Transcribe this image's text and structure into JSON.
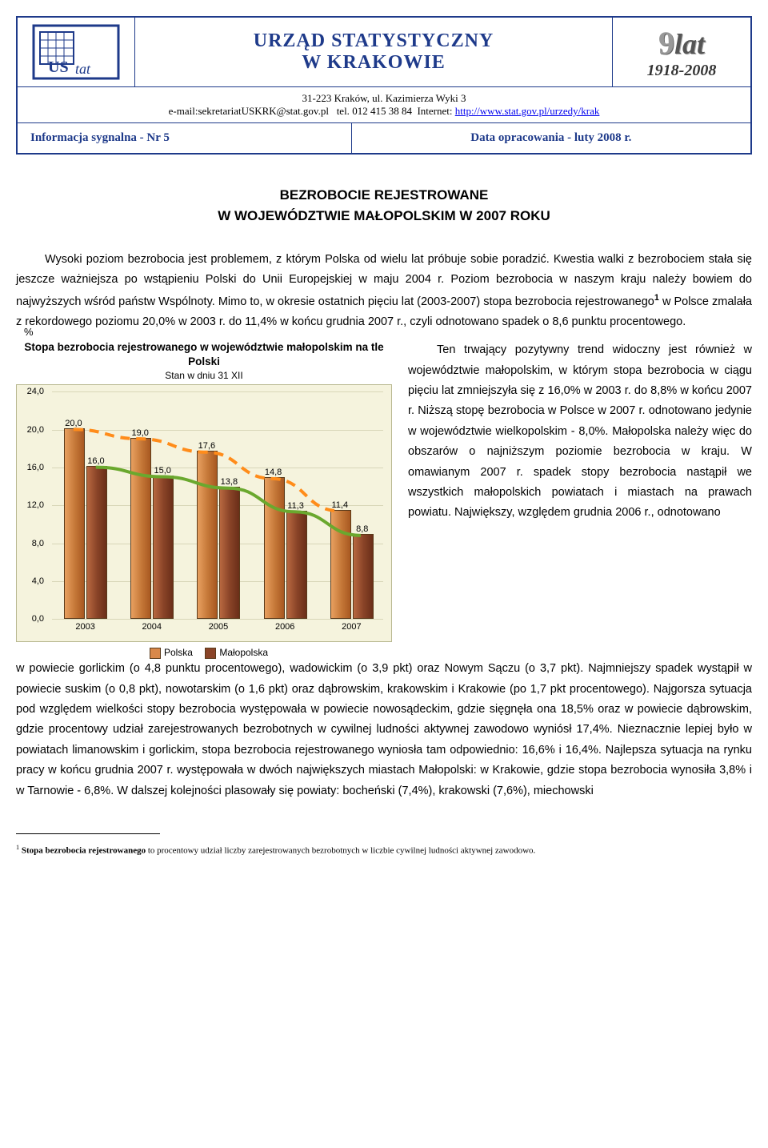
{
  "header": {
    "title_line1": "URZĄD STATYSTYCZNY",
    "title_line2": "W KRAKOWIE",
    "years_logo": "lat",
    "years_span": "1918-2008",
    "addr_line1": "31-223 Kraków,  ul. Kazimierza Wyki 3",
    "addr_email_label": "e-mail:",
    "addr_email": "sekretariatUSKRK@stat.gov.pl",
    "addr_tel_label": "tel.",
    "addr_tel": "012 415 38 84",
    "addr_net_label": "Internet:",
    "addr_url": "http://www.stat.gov.pl/urzedy/krak",
    "info_left": "Informacja sygnalna - Nr 5",
    "info_right": "Data opracowania - luty 2008 r."
  },
  "doc": {
    "title_line1": "BEZROBOCIE REJESTROWANE",
    "title_line2": "W WOJEWÓDZTWIE MAŁOPOLSKIM W 2007 ROKU",
    "para1": "Wysoki poziom bezrobocia jest problemem, z którym Polska od wielu lat próbuje sobie poradzić. Kwestia walki z bezrobociem stała się jeszcze ważniejsza po wstąpieniu Polski do Unii Europejskiej w maju 2004 r. Poziom bezrobocia w naszym kraju należy bowiem do najwyższych wśród państw Wspólnoty. Mimo to, w okresie ostatnich pięciu lat (2003-2007) stopa bezrobocia rejestrowanego",
    "para1_sup": "1",
    "para1_cont": " w Polsce zmalała z rekordowego poziomu 20,0% w 2003 r. do 11,4% w końcu grudnia 2007 r., czyli odnotowano spadek o 8,6 punktu procentowego.",
    "right_para": "Ten trwający pozytywny trend widoczny jest również w województwie małopolskim, w którym stopa bezrobocia w ciągu pięciu lat zmniejszyła się z 16,0% w 2003 r. do 8,8% w końcu 2007 r. Niższą stopę bezrobocia w Polsce w 2007 r. odnotowano jedynie w województwie wielkopolskim - 8,0%. Małopolska należy więc do obszarów o najniższym poziomie bezrobocia w kraju. W omawianym 2007 r. spadek stopy bezrobocia nastąpił we wszystkich małopolskich powiatach i miastach na prawach powiatu. Największy, względem grudnia 2006 r., odnotowano",
    "para_after": "w powiecie gorlickim (o 4,8 punktu procentowego), wadowickim (o 3,9 pkt) oraz Nowym Sączu (o 3,7 pkt). Najmniejszy spadek wystąpił w powiecie suskim (o 0,8 pkt), nowotarskim (o 1,6 pkt) oraz dąbrowskim, krakowskim i Krakowie (po 1,7 pkt procentowego). Najgorsza sytuacja pod względem wielkości stopy bezrobocia występowała w powiecie nowosądeckim, gdzie sięgnęła ona 18,5% oraz w powiecie dąbrowskim, gdzie procentowy udział zarejestrowanych bezrobotnych w cywilnej ludności aktywnej zawodowo wyniósł 17,4%. Nieznacznie lepiej było w powiatach limanowskim i gorlickim, stopa bezrobocia rejestrowanego wyniosła tam odpowiednio: 16,6% i 16,4%. Najlepsza sytuacja na rynku pracy w końcu grudnia 2007 r. występowała w dwóch największych miastach Małopolski: w Krakowie, gdzie stopa bezrobocia wynosiła 3,8% i w Tarnowie - 6,8%. W dalszej kolejności plasowały się powiaty: bocheński (7,4%), krakowski (7,6%), miechowski"
  },
  "chart": {
    "title": "Stopa bezrobocia rejestrowanego w województwie małopolskim na tle Polski",
    "subtitle": "Stan w dniu 31 XII",
    "pct_symbol": "%",
    "y_max": 24.0,
    "y_ticks": [
      "24,0",
      "20,0",
      "16,0",
      "12,0",
      "8,0",
      "4,0",
      "0,0"
    ],
    "y_tick_vals": [
      24.0,
      20.0,
      16.0,
      12.0,
      8.0,
      4.0,
      0.0
    ],
    "categories": [
      "2003",
      "2004",
      "2005",
      "2006",
      "2007"
    ],
    "series": {
      "polska": {
        "label": "Polska",
        "values": [
          20.0,
          19.0,
          17.6,
          14.8,
          11.4
        ],
        "labels": [
          "20,0",
          "19,0",
          "17,6",
          "14,8",
          "11,4"
        ],
        "color": "#d8884a"
      },
      "malopolska": {
        "label": "Małopolska",
        "values": [
          16.0,
          15.0,
          13.8,
          11.3,
          8.8
        ],
        "labels": [
          "16,0",
          "15,0",
          "13,8",
          "11,3",
          "8,8"
        ],
        "color": "#8a4428"
      }
    },
    "trend_polska_color": "#ff8c1a",
    "trend_malop_color": "#6aa82e",
    "background": "#f5f3dd",
    "grid_color": "#d8d6b8"
  },
  "footnote": {
    "marker": "1",
    "bold": "Stopa bezrobocia rejestrowanego",
    "rest": " to procentowy udział liczby zarejestrowanych bezrobotnych w liczbie cywilnej ludności aktywnej zawodowo."
  }
}
